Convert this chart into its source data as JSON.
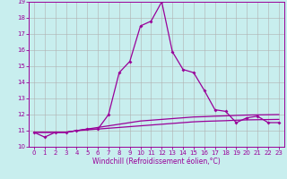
{
  "xlabel": "Windchill (Refroidissement éolien,°C)",
  "x_values": [
    0,
    1,
    2,
    3,
    4,
    5,
    6,
    7,
    8,
    9,
    10,
    11,
    12,
    13,
    14,
    15,
    16,
    17,
    18,
    19,
    20,
    21,
    22,
    23
  ],
  "line1_y": [
    10.9,
    10.6,
    10.9,
    10.9,
    11.0,
    11.1,
    11.1,
    12.0,
    14.6,
    15.3,
    17.5,
    17.8,
    19.0,
    15.9,
    14.8,
    14.6,
    13.5,
    12.3,
    12.2,
    11.5,
    11.8,
    11.9,
    11.5,
    11.5
  ],
  "line2_y": [
    10.9,
    10.9,
    10.9,
    10.9,
    11.0,
    11.1,
    11.2,
    11.3,
    11.4,
    11.5,
    11.6,
    11.65,
    11.7,
    11.75,
    11.8,
    11.85,
    11.87,
    11.9,
    11.92,
    11.95,
    11.97,
    11.98,
    11.99,
    12.0
  ],
  "line3_y": [
    10.9,
    10.9,
    10.9,
    10.9,
    11.0,
    11.05,
    11.1,
    11.15,
    11.2,
    11.25,
    11.3,
    11.35,
    11.4,
    11.45,
    11.5,
    11.55,
    11.58,
    11.6,
    11.62,
    11.65,
    11.67,
    11.68,
    11.69,
    11.7
  ],
  "line_color": "#990099",
  "bg_color": "#c8eeee",
  "grid_color": "#b0b0b0",
  "ylim": [
    10,
    19
  ],
  "xlim": [
    -0.5,
    23.5
  ],
  "yticks": [
    10,
    11,
    12,
    13,
    14,
    15,
    16,
    17,
    18,
    19
  ],
  "xticks": [
    0,
    1,
    2,
    3,
    4,
    5,
    6,
    7,
    8,
    9,
    10,
    11,
    12,
    13,
    14,
    15,
    16,
    17,
    18,
    19,
    20,
    21,
    22,
    23
  ],
  "tick_fontsize": 5.0,
  "xlabel_fontsize": 5.5,
  "marker_size": 2.0,
  "linewidth": 0.9
}
